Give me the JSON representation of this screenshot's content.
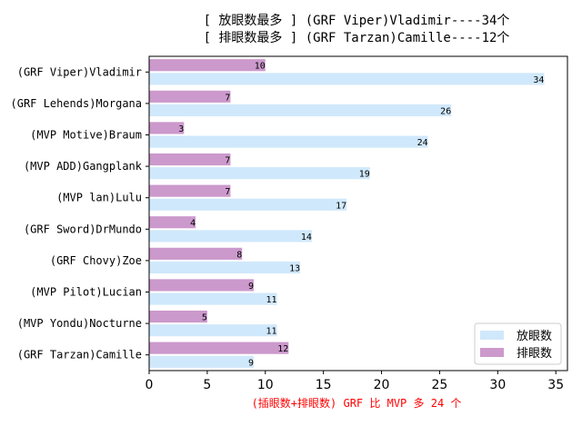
{
  "chart_data": {
    "type": "bar",
    "orientation": "horizontal",
    "title_lines": [
      "[ 放眼数最多 ] (GRF Viper)Vladimir----34个",
      "[ 排眼数最多 ] (GRF Tarzan)Camille----12个"
    ],
    "xlabel": "(插眼数+排眼数) GRF 比 MVP 多 24 个",
    "categories": [
      "(GRF Viper)Vladimir",
      "(GRF Lehends)Morgana",
      "(MVP Motive)Braum",
      "(MVP ADD)Gangplank",
      "(MVP lan)Lulu",
      "(GRF Sword)DrMundo",
      "(GRF Chovy)Zoe",
      "(MVP Pilot)Lucian",
      "(MVP Yondu)Nocturne",
      "(GRF Tarzan)Camille"
    ],
    "series": [
      {
        "name": "放眼数",
        "color": "#d0e8fb",
        "values": [
          34,
          26,
          24,
          19,
          17,
          14,
          13,
          11,
          11,
          9
        ]
      },
      {
        "name": "排眼数",
        "color": "#cc99cc",
        "values": [
          10,
          7,
          3,
          7,
          7,
          4,
          8,
          9,
          5,
          12
        ]
      }
    ],
    "xlim": [
      0,
      36
    ],
    "xticks": [
      0,
      5,
      10,
      15,
      20,
      25,
      30,
      35
    ],
    "legend_position": "lower-right",
    "grid": false
  }
}
